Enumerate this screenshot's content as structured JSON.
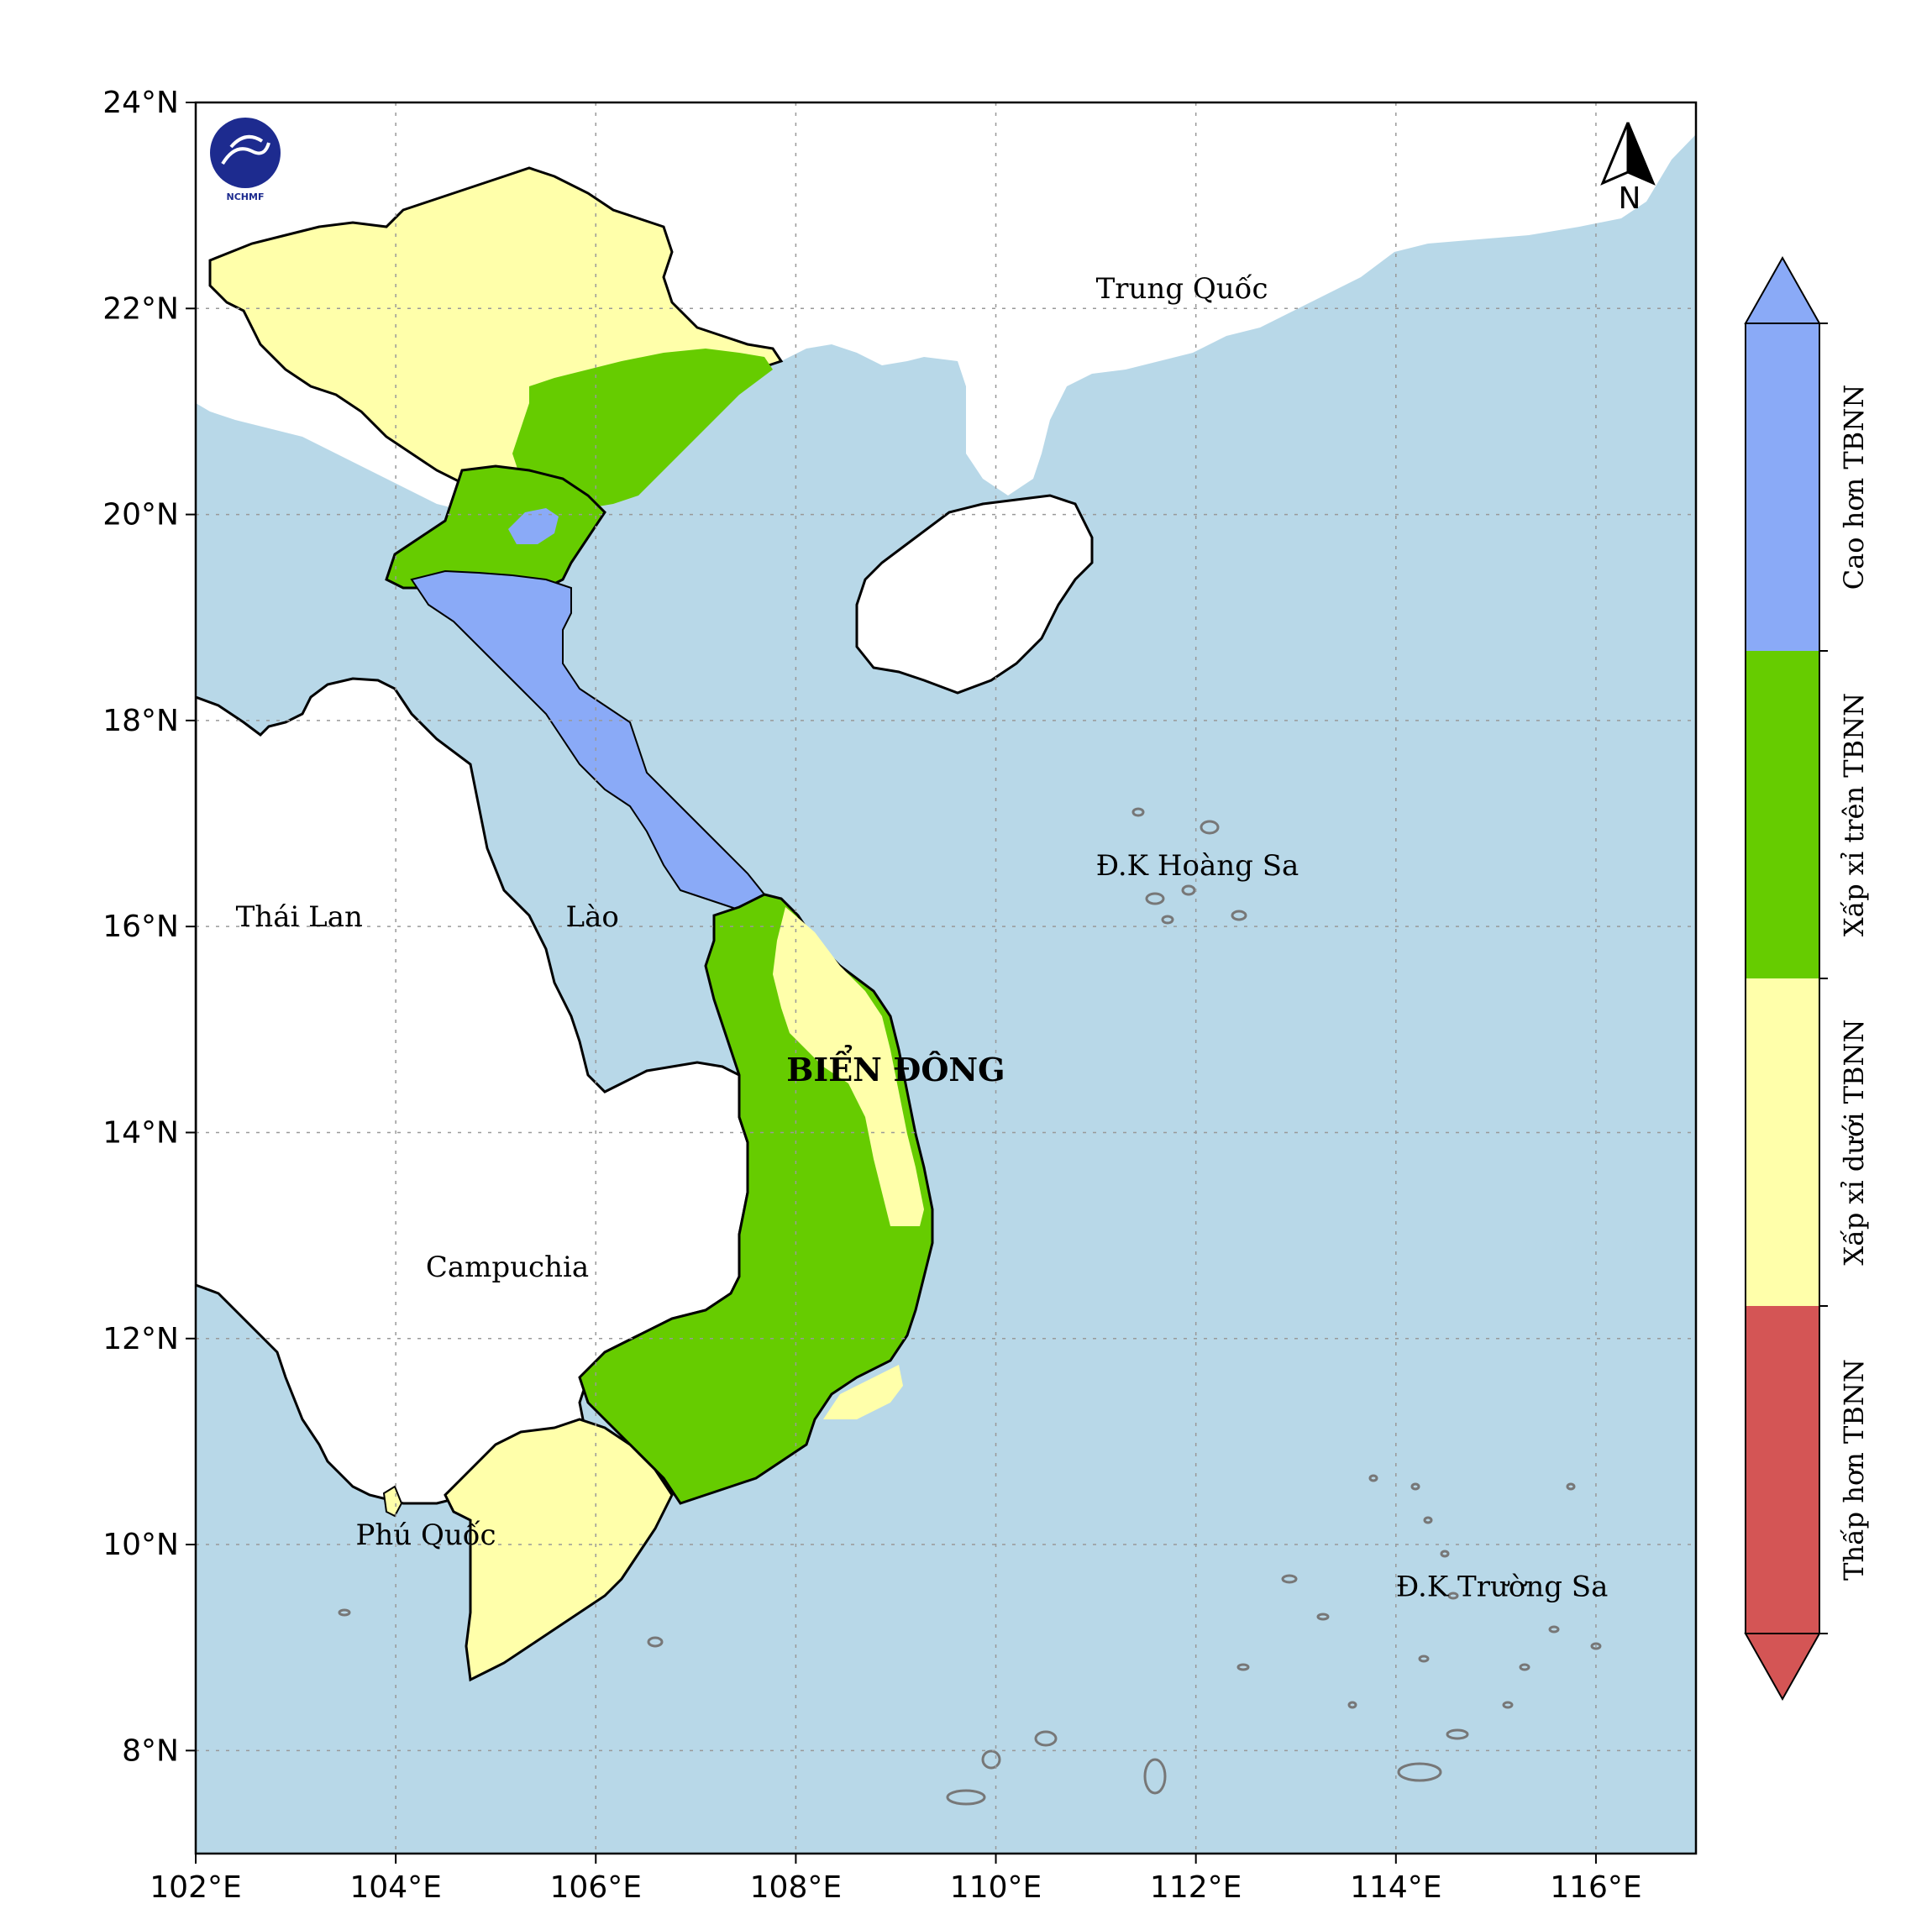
{
  "map": {
    "lon_range": [
      102,
      117
    ],
    "lat_range": [
      7,
      24
    ],
    "grid": true,
    "x_ticks": [
      {
        "lon": 102,
        "label": "102°E"
      },
      {
        "lon": 104,
        "label": "104°E"
      },
      {
        "lon": 106,
        "label": "106°E"
      },
      {
        "lon": 108,
        "label": "108°E"
      },
      {
        "lon": 110,
        "label": "110°E"
      },
      {
        "lon": 112,
        "label": "112°E"
      },
      {
        "lon": 114,
        "label": "114°E"
      },
      {
        "lon": 116,
        "label": "116°E"
      }
    ],
    "y_ticks": [
      {
        "lat": 8,
        "label": "8°N"
      },
      {
        "lat": 10,
        "label": "10°N"
      },
      {
        "lat": 12,
        "label": "12°N"
      },
      {
        "lat": 14,
        "label": "14°N"
      },
      {
        "lat": 16,
        "label": "16°N"
      },
      {
        "lat": 18,
        "label": "18°N"
      },
      {
        "lat": 20,
        "label": "20°N"
      },
      {
        "lat": 22,
        "label": "22°N"
      },
      {
        "lat": 24,
        "label": "24°N"
      }
    ],
    "colors": {
      "sea": "#b8d8e8",
      "land": "#ffffff",
      "cao_hon": "#8aaaf7",
      "xap_xi_tren": "#66cc00",
      "xap_xi_duoi": "#ffffaa",
      "thap_hon": "#d45555"
    }
  },
  "logo": {
    "text": "NCHMF"
  },
  "north_arrow": {
    "label": "N"
  },
  "places": [
    {
      "name": "Trung Quốc",
      "lon": 111.0,
      "lat": 22.1
    },
    {
      "name": "Thái Lan",
      "lon": 102.4,
      "lat": 16.0
    },
    {
      "name": "Lào",
      "lon": 105.7,
      "lat": 16.0
    },
    {
      "name": "Campuchia",
      "lon": 104.3,
      "lat": 12.6
    },
    {
      "name": "Phú Quốc",
      "lon": 103.6,
      "lat": 10.0
    },
    {
      "name": "Đ.K Hoàng Sa",
      "lon": 111.0,
      "lat": 16.5
    },
    {
      "name": "Đ.K Trường Sa",
      "lon": 114.0,
      "lat": 9.5
    }
  ],
  "sea_label": {
    "name": "BIỂN ĐÔNG",
    "lon": 109.0,
    "lat": 14.5
  },
  "colorbar": {
    "categories": [
      {
        "label": "Cao hơn TBNN",
        "color": "#8aaaf7"
      },
      {
        "label": "Xấp xỉ trên TBNN",
        "color": "#66cc00"
      },
      {
        "label": "Xấp xỉ dưới TBNN",
        "color": "#ffffaa"
      },
      {
        "label": "Thấp hơn TBNN",
        "color": "#d45555"
      }
    ]
  }
}
